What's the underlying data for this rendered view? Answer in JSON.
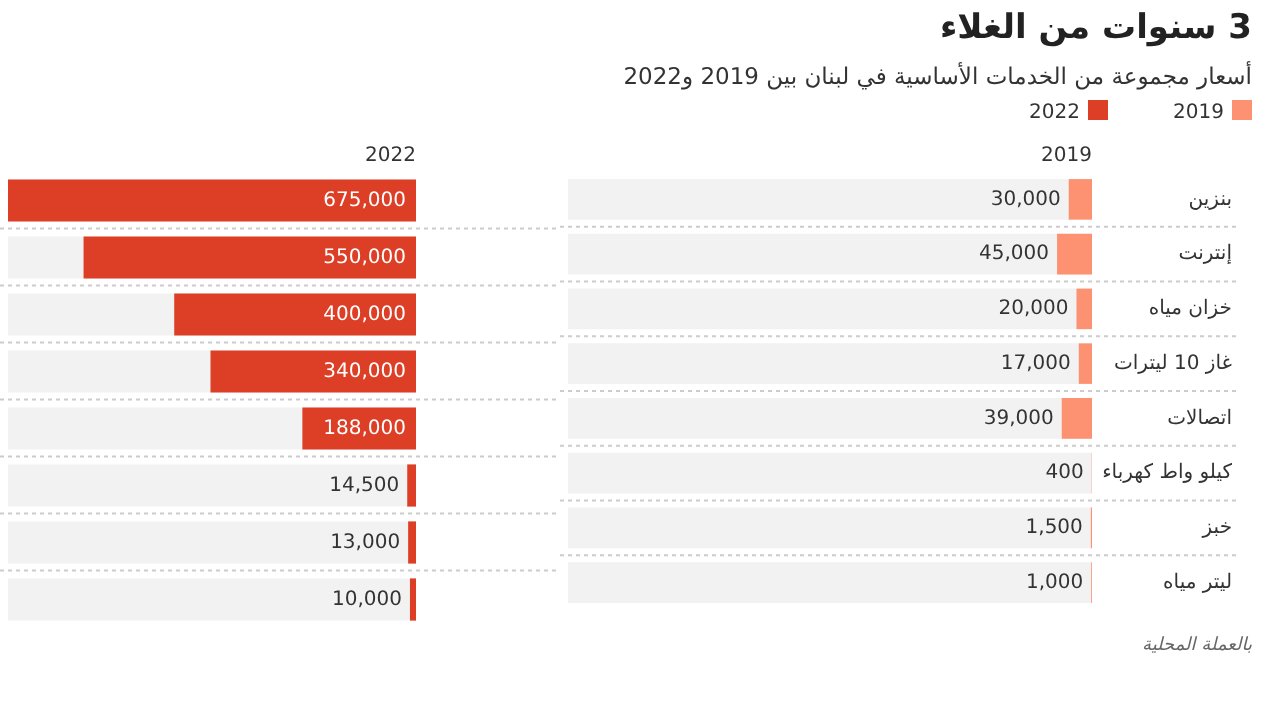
{
  "chart_data": [
    {
      "type": "bar",
      "orientation": "horizontal",
      "title": "3 سنوات من الغلاء",
      "subtitle": "أسعار مجموعة من الخدمات الأساسية في لبنان بين 2019 و2022",
      "categories": [
        "بنزين",
        "إنترنت",
        "خزان مياه",
        "غاز 10 ليترات",
        "اتصالات",
        "كيلو واط كهرباء",
        "خبز",
        "ليتر مياه"
      ],
      "series": [
        {
          "name": "2019",
          "color": "#fc9272",
          "values": [
            30000,
            45000,
            20000,
            17000,
            39000,
            400,
            1500,
            1000
          ],
          "value_labels": [
            "30,000",
            "45,000",
            "20,000",
            "17,000",
            "39,000",
            "400",
            "1,500",
            "1,000"
          ]
        }
      ],
      "xlim": [
        675000,
        0
      ],
      "legend": "top right",
      "tick_labels": "y",
      "annotations": [
        "بالعملة المحلية"
      ]
    },
    {
      "type": "bar",
      "orientation": "horizontal",
      "categories": [
        null,
        null,
        null,
        null,
        null,
        null,
        null,
        null
      ],
      "series": [
        {
          "name": "2022",
          "color": "#dc3f26",
          "values": [
            675000,
            550000,
            400000,
            340000,
            188000,
            14500,
            13000,
            10000
          ],
          "value_labels": [
            "675,000",
            "550,000",
            "400,000",
            "340,000",
            "188,000",
            "14,500",
            "13,000",
            "10,000"
          ]
        }
      ],
      "xlim": [
        675000,
        0
      ],
      "legend": "top right",
      "tick_labels": false
    }
  ]
}
